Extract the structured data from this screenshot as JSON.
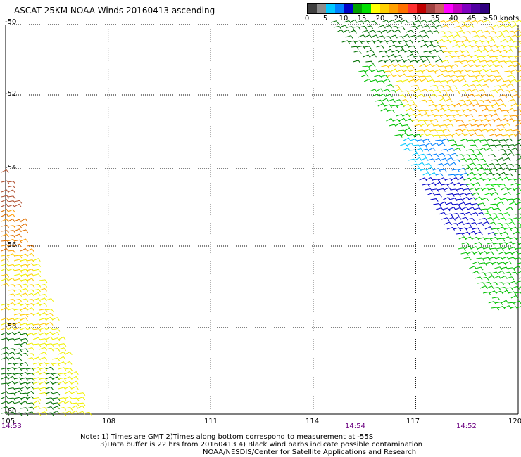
{
  "title": "ASCAT 25KM NOAA Winds 20160413 ascending",
  "legend": {
    "labels": [
      "0",
      "5",
      "10",
      "15",
      "20",
      "25",
      "30",
      "35",
      "40",
      "45",
      ">50 knots"
    ],
    "colors": [
      "#404040",
      "#8c8c8c",
      "#00c8ff",
      "#0080ff",
      "#0000c8",
      "#00a000",
      "#00e000",
      "#ffff00",
      "#ffd000",
      "#ffa000",
      "#ff7000",
      "#ff3030",
      "#c00000",
      "#a04040",
      "#c86464",
      "#ff00ff",
      "#c000c0",
      "#8000c0",
      "#5000a0",
      "#300080"
    ]
  },
  "map": {
    "lon_range": [
      105,
      120
    ],
    "lat_range": [
      -60,
      -50
    ],
    "lat_ticks": [
      "-50",
      "-52",
      "-54",
      "-56",
      "-58",
      "-60"
    ],
    "lon_ticks": [
      "105",
      "108",
      "111",
      "114",
      "117",
      "120"
    ],
    "grid": "dotted"
  },
  "time_labels": [
    "14:53",
    "14:54",
    "14:52"
  ],
  "note": {
    "line1": "Note: 1) Times are GMT 2)Times along bottom correspond to measurement at -55S",
    "line2": "3)Data buffer is 22 hrs from 20160413 4) Black wind barbs indicate possible contamination",
    "line3": "NOAA/NESDIS/Center for Satellite Applications and Research"
  }
}
